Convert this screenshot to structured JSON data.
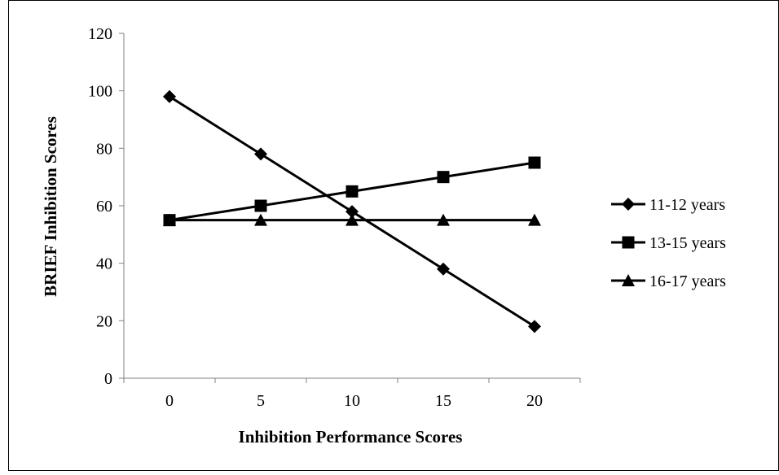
{
  "chart_data": {
    "type": "line",
    "title": "",
    "xlabel": "Inhibition Performance Scores",
    "ylabel": "BRIEF Inhibition Scores",
    "categories": [
      "0",
      "5",
      "10",
      "15",
      "20"
    ],
    "ylim": [
      0,
      120
    ],
    "yticks": [
      0,
      20,
      40,
      60,
      80,
      100,
      120
    ],
    "ytick_labels": [
      "0",
      "20",
      "40",
      "60",
      "80",
      "100",
      "120"
    ],
    "grid": false,
    "legend_position": "right",
    "series": [
      {
        "name": "11-12 years",
        "marker": "diamond",
        "values": [
          98,
          78,
          58,
          38,
          18
        ]
      },
      {
        "name": "13-15 years",
        "marker": "square",
        "values": [
          55,
          60,
          65,
          70,
          75
        ]
      },
      {
        "name": "16-17 years",
        "marker": "triangle",
        "values": [
          55,
          55,
          55,
          55,
          55
        ]
      }
    ],
    "colors": {
      "line": "#000000",
      "axis": "#808080",
      "frame": "#000000",
      "background": "#ffffff"
    }
  }
}
